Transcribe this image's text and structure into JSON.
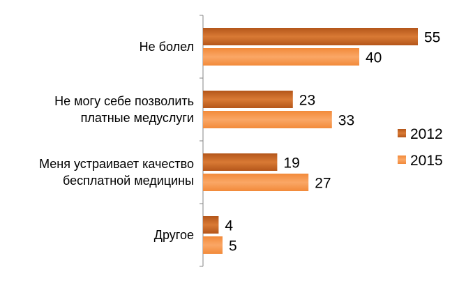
{
  "chart_data": {
    "type": "bar",
    "orientation": "horizontal",
    "categories": [
      [
        "Не болел"
      ],
      [
        "Не могу себе позволить",
        "платные медуслуги"
      ],
      [
        "Меня устраивает качество",
        "бесплатной медицины"
      ],
      [
        "Другое"
      ]
    ],
    "series": [
      {
        "name": "2012",
        "values": [
          55,
          23,
          19,
          4
        ],
        "color": "#D26A1E",
        "gradient_light": "#E8924A"
      },
      {
        "name": "2015",
        "values": [
          40,
          33,
          27,
          5
        ],
        "color": "#F79646",
        "gradient_light": "#F9B27A"
      }
    ],
    "xlim": [
      0,
      60
    ],
    "grid": false,
    "legend_position": "right",
    "data_labels": true
  }
}
